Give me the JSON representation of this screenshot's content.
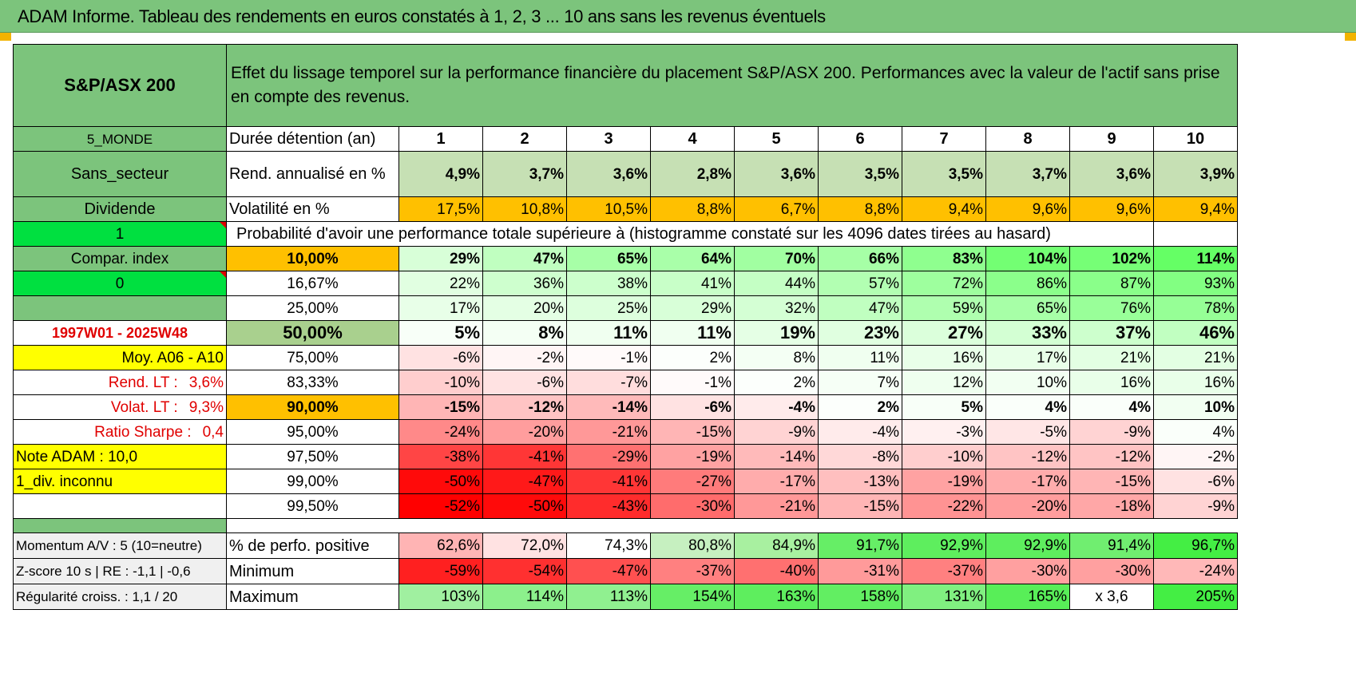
{
  "title": "ADAM Informe. Tableau des rendements en euros constatés à 1, 2, 3 ... 10 ans sans les revenus éventuels",
  "header": {
    "index_name": "S&P/ASX 200",
    "description": "Effet du lissage temporel sur la performance financière du placement S&P/ASX 200. Performances avec la valeur de l'actif sans prise en compte des revenus."
  },
  "left": {
    "zone": "5_MONDE",
    "secteur": "Sans_secteur",
    "dividende": "Dividende",
    "dividende_value": "1",
    "compar_index": "Compar. index",
    "compar_value": "0",
    "period": "1997W01 - 2025W48",
    "moy": "Moy. A06 - A10",
    "rend_lt_label": "Rend. LT :",
    "rend_lt_value": "3,6%",
    "volat_lt_label": "Volat. LT :",
    "volat_lt_value": "9,3%",
    "sharpe_label": "Ratio Sharpe :",
    "sharpe_value": "0,4",
    "note": "Note ADAM : 10,0",
    "div_info": "1_div. inconnu"
  },
  "duree_label": "Durée détention (an)",
  "years": [
    "1",
    "2",
    "3",
    "4",
    "5",
    "6",
    "7",
    "8",
    "9",
    "10"
  ],
  "rend_label": "Rend. annualisé en %",
  "rend": [
    "4,9%",
    "3,7%",
    "3,6%",
    "2,8%",
    "3,6%",
    "3,5%",
    "3,5%",
    "3,7%",
    "3,6%",
    "3,9%"
  ],
  "vol_label": "Volatilité en %",
  "vol": [
    "17,5%",
    "10,8%",
    "10,5%",
    "8,8%",
    "6,7%",
    "8,8%",
    "9,4%",
    "9,6%",
    "9,6%",
    "9,4%"
  ],
  "prob_label": "Probabilité d'avoir une performance totale supérieure à (histogramme constaté sur les 4096 dates tirées au hasard)",
  "quantiles": [
    {
      "p": "10,00%",
      "v": [
        "29%",
        "47%",
        "65%",
        "64%",
        "70%",
        "66%",
        "83%",
        "104%",
        "102%",
        "114%"
      ]
    },
    {
      "p": "16,67%",
      "v": [
        "22%",
        "36%",
        "38%",
        "41%",
        "44%",
        "57%",
        "72%",
        "86%",
        "87%",
        "93%"
      ]
    },
    {
      "p": "25,00%",
      "v": [
        "17%",
        "20%",
        "25%",
        "29%",
        "32%",
        "47%",
        "59%",
        "65%",
        "76%",
        "78%"
      ]
    },
    {
      "p": "50,00%",
      "v": [
        "5%",
        "8%",
        "11%",
        "11%",
        "19%",
        "23%",
        "27%",
        "33%",
        "37%",
        "46%"
      ]
    },
    {
      "p": "75,00%",
      "v": [
        "-6%",
        "-2%",
        "-1%",
        "2%",
        "8%",
        "11%",
        "16%",
        "17%",
        "21%",
        "21%"
      ]
    },
    {
      "p": "83,33%",
      "v": [
        "-10%",
        "-6%",
        "-7%",
        "-1%",
        "2%",
        "7%",
        "12%",
        "10%",
        "16%",
        "16%"
      ]
    },
    {
      "p": "90,00%",
      "v": [
        "-15%",
        "-12%",
        "-14%",
        "-6%",
        "-4%",
        "2%",
        "5%",
        "4%",
        "4%",
        "10%"
      ]
    },
    {
      "p": "95,00%",
      "v": [
        "-24%",
        "-20%",
        "-21%",
        "-15%",
        "-9%",
        "-4%",
        "-3%",
        "-5%",
        "-9%",
        "4%"
      ]
    },
    {
      "p": "97,50%",
      "v": [
        "-38%",
        "-41%",
        "-29%",
        "-19%",
        "-14%",
        "-8%",
        "-10%",
        "-12%",
        "-12%",
        "-2%"
      ]
    },
    {
      "p": "99,00%",
      "v": [
        "-50%",
        "-47%",
        "-41%",
        "-27%",
        "-17%",
        "-13%",
        "-19%",
        "-17%",
        "-15%",
        "-6%"
      ]
    },
    {
      "p": "99,50%",
      "v": [
        "-52%",
        "-50%",
        "-43%",
        "-30%",
        "-21%",
        "-15%",
        "-22%",
        "-20%",
        "-18%",
        "-9%"
      ]
    }
  ],
  "bottom": [
    {
      "left": "Momentum A/V : 5 (10=neutre)",
      "label": "% de perfo. positive",
      "v": [
        "62,6%",
        "72,0%",
        "74,3%",
        "80,8%",
        "84,9%",
        "91,7%",
        "92,9%",
        "92,9%",
        "91,4%",
        "96,7%"
      ]
    },
    {
      "left": "Z-score 10 s | RE : -1,1 | -0,6",
      "label": "Minimum",
      "v": [
        "-59%",
        "-54%",
        "-47%",
        "-37%",
        "-40%",
        "-31%",
        "-37%",
        "-30%",
        "-30%",
        "-24%"
      ]
    },
    {
      "left": "Régularité croiss. : 1,1 / 20",
      "label": "Maximum",
      "v": [
        "103%",
        "114%",
        "113%",
        "154%",
        "163%",
        "158%",
        "131%",
        "165%",
        "x 3,6",
        "205%"
      ]
    }
  ],
  "colors": {
    "header_green": "#7cc47c",
    "yellow": "#ffff00",
    "orange": "#ffc000",
    "bright_green": "#00e040",
    "red_text": "#e00000"
  }
}
